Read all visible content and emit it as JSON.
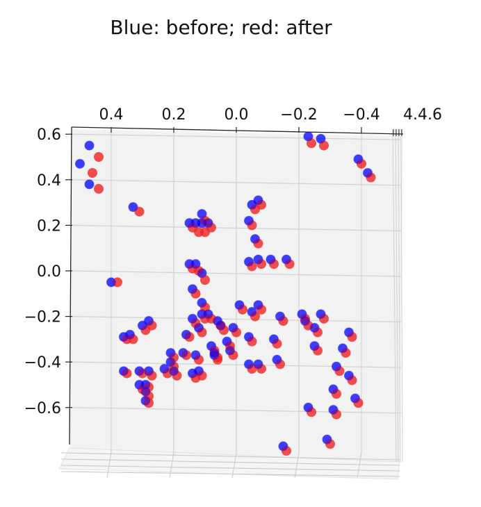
{
  "chart_data": {
    "type": "scatter",
    "projection": "3d",
    "title": "Blue: before; red: after",
    "x_tick_labels": [
      "0.4",
      "0.2",
      "0.0",
      "−0.2",
      "−0.4"
    ],
    "x_ticks": [
      0.4,
      0.2,
      0.0,
      -0.2,
      -0.4
    ],
    "x_axis_direction": "decreasing left to right",
    "x_edge_tick_labels": "4 overlapping illegible labels at right end",
    "y_tick_labels": [
      "0.6",
      "0.4",
      "0.2",
      "0.0",
      "−0.2",
      "−0.4",
      "−0.6"
    ],
    "y_ticks": [
      0.6,
      0.4,
      0.2,
      0.0,
      -0.2,
      -0.4,
      -0.6
    ],
    "xlim": [
      0.56,
      -0.5
    ],
    "ylim": [
      -0.78,
      0.65
    ],
    "grid": true,
    "pane_color": "#f2f2f2",
    "series": [
      {
        "color": "#0000ff",
        "points": [
          [
            0.47,
            0.55
          ],
          [
            0.5,
            0.47
          ],
          [
            0.47,
            0.38
          ],
          [
            0.33,
            0.28
          ],
          [
            0.4,
            -0.05
          ],
          [
            0.15,
            0.21
          ],
          [
            0.13,
            0.21
          ],
          [
            0.11,
            0.21
          ],
          [
            0.09,
            0.21
          ],
          [
            0.11,
            0.25
          ],
          [
            0.15,
            0.03
          ],
          [
            0.13,
            0.03
          ],
          [
            0.11,
            -0.01
          ],
          [
            0.14,
            -0.08
          ],
          [
            0.11,
            -0.14
          ],
          [
            0.11,
            -0.19
          ],
          [
            0.09,
            -0.19
          ],
          [
            0.06,
            -0.22
          ],
          [
            0.14,
            -0.21
          ],
          [
            0.12,
            -0.25
          ],
          [
            0.16,
            -0.28
          ],
          [
            0.17,
            -0.36
          ],
          [
            0.13,
            -0.37
          ],
          [
            0.14,
            -0.45
          ],
          [
            0.21,
            -0.36
          ],
          [
            0.21,
            -0.4
          ],
          [
            0.23,
            -0.43
          ],
          [
            0.28,
            -0.44
          ],
          [
            0.29,
            -0.5
          ],
          [
            0.31,
            -0.5
          ],
          [
            0.29,
            -0.53
          ],
          [
            0.29,
            -0.57
          ],
          [
            0.31,
            -0.44
          ],
          [
            0.36,
            -0.44
          ],
          [
            0.36,
            -0.29
          ],
          [
            0.34,
            -0.28
          ],
          [
            0.3,
            -0.24
          ],
          [
            0.28,
            -0.22
          ],
          [
            0.12,
            -0.44
          ],
          [
            0.2,
            -0.44
          ],
          [
            0.08,
            -0.33
          ],
          [
            0.07,
            -0.36
          ],
          [
            0.03,
            -0.31
          ],
          [
            0.01,
            -0.25
          ],
          [
            -0.05,
            0.29
          ],
          [
            -0.07,
            0.31
          ],
          [
            -0.04,
            0.22
          ],
          [
            -0.06,
            0.14
          ],
          [
            -0.07,
            0.05
          ],
          [
            -0.04,
            0.04
          ],
          [
            -0.01,
            -0.15
          ],
          [
            -0.07,
            -0.15
          ],
          [
            -0.04,
            -0.29
          ],
          [
            -0.07,
            -0.41
          ],
          [
            -0.04,
            -0.41
          ],
          [
            -0.12,
            -0.3
          ],
          [
            -0.14,
            -0.2
          ],
          [
            -0.13,
            -0.39
          ],
          [
            -0.21,
            -0.19
          ],
          [
            -0.22,
            -0.22
          ],
          [
            -0.25,
            -0.25
          ],
          [
            -0.23,
            0.59
          ],
          [
            -0.27,
            0.58
          ],
          [
            -0.39,
            0.49
          ],
          [
            -0.42,
            0.43
          ],
          [
            -0.36,
            -0.27
          ],
          [
            -0.34,
            -0.34
          ],
          [
            -0.32,
            -0.42
          ],
          [
            -0.36,
            -0.46
          ],
          [
            -0.31,
            -0.52
          ],
          [
            -0.38,
            -0.56
          ],
          [
            -0.31,
            -0.61
          ],
          [
            -0.15,
            -0.77
          ],
          [
            -0.29,
            -0.74
          ],
          [
            -0.23,
            -0.6
          ],
          [
            -0.25,
            -0.33
          ],
          [
            -0.27,
            -0.19
          ],
          [
            -0.16,
            0.05
          ],
          [
            -0.11,
            0.05
          ],
          [
            -0.05,
            -0.18
          ],
          [
            0.05,
            -0.24
          ],
          [
            0.07,
            -0.37
          ],
          [
            0.02,
            -0.35
          ]
        ]
      },
      {
        "color": "#ee2222",
        "points": [
          [
            0.44,
            0.5
          ],
          [
            0.46,
            0.43
          ],
          [
            0.44,
            0.36
          ],
          [
            0.31,
            0.26
          ],
          [
            0.38,
            -0.05
          ],
          [
            0.14,
            0.19
          ],
          [
            0.12,
            0.17
          ],
          [
            0.1,
            0.17
          ],
          [
            0.08,
            0.19
          ],
          [
            0.1,
            0.22
          ],
          [
            0.14,
            0.01
          ],
          [
            0.12,
            0.0
          ],
          [
            0.1,
            -0.04
          ],
          [
            0.13,
            -0.1
          ],
          [
            0.1,
            -0.16
          ],
          [
            0.1,
            -0.21
          ],
          [
            0.08,
            -0.21
          ],
          [
            0.05,
            -0.24
          ],
          [
            0.13,
            -0.23
          ],
          [
            0.11,
            -0.27
          ],
          [
            0.15,
            -0.29
          ],
          [
            0.16,
            -0.37
          ],
          [
            0.12,
            -0.39
          ],
          [
            0.13,
            -0.47
          ],
          [
            0.2,
            -0.38
          ],
          [
            0.2,
            -0.42
          ],
          [
            0.22,
            -0.45
          ],
          [
            0.27,
            -0.46
          ],
          [
            0.28,
            -0.51
          ],
          [
            0.3,
            -0.52
          ],
          [
            0.28,
            -0.55
          ],
          [
            0.28,
            -0.58
          ],
          [
            0.3,
            -0.45
          ],
          [
            0.35,
            -0.45
          ],
          [
            0.35,
            -0.3
          ],
          [
            0.33,
            -0.3
          ],
          [
            0.29,
            -0.26
          ],
          [
            0.27,
            -0.24
          ],
          [
            0.11,
            -0.46
          ],
          [
            0.19,
            -0.46
          ],
          [
            0.07,
            -0.35
          ],
          [
            0.06,
            -0.38
          ],
          [
            0.02,
            -0.33
          ],
          [
            0.0,
            -0.27
          ],
          [
            -0.06,
            0.27
          ],
          [
            -0.08,
            0.29
          ],
          [
            -0.05,
            0.2
          ],
          [
            -0.07,
            0.12
          ],
          [
            -0.08,
            0.03
          ],
          [
            -0.05,
            0.02
          ],
          [
            -0.02,
            -0.17
          ],
          [
            -0.08,
            -0.17
          ],
          [
            -0.05,
            -0.31
          ],
          [
            -0.08,
            -0.43
          ],
          [
            -0.05,
            -0.43
          ],
          [
            -0.13,
            -0.32
          ],
          [
            -0.15,
            -0.22
          ],
          [
            -0.14,
            -0.41
          ],
          [
            -0.22,
            -0.21
          ],
          [
            -0.23,
            -0.24
          ],
          [
            -0.26,
            -0.27
          ],
          [
            -0.24,
            0.56
          ],
          [
            -0.28,
            0.55
          ],
          [
            -0.4,
            0.47
          ],
          [
            -0.43,
            0.41
          ],
          [
            -0.37,
            -0.29
          ],
          [
            -0.35,
            -0.36
          ],
          [
            -0.33,
            -0.44
          ],
          [
            -0.37,
            -0.48
          ],
          [
            -0.32,
            -0.54
          ],
          [
            -0.39,
            -0.58
          ],
          [
            -0.32,
            -0.63
          ],
          [
            -0.16,
            -0.79
          ],
          [
            -0.3,
            -0.76
          ],
          [
            -0.24,
            -0.62
          ],
          [
            -0.26,
            -0.35
          ],
          [
            -0.28,
            -0.21
          ],
          [
            -0.17,
            0.03
          ],
          [
            -0.12,
            0.03
          ],
          [
            -0.06,
            -0.2
          ],
          [
            0.04,
            -0.26
          ],
          [
            0.06,
            -0.39
          ],
          [
            0.01,
            -0.37
          ]
        ]
      }
    ]
  }
}
